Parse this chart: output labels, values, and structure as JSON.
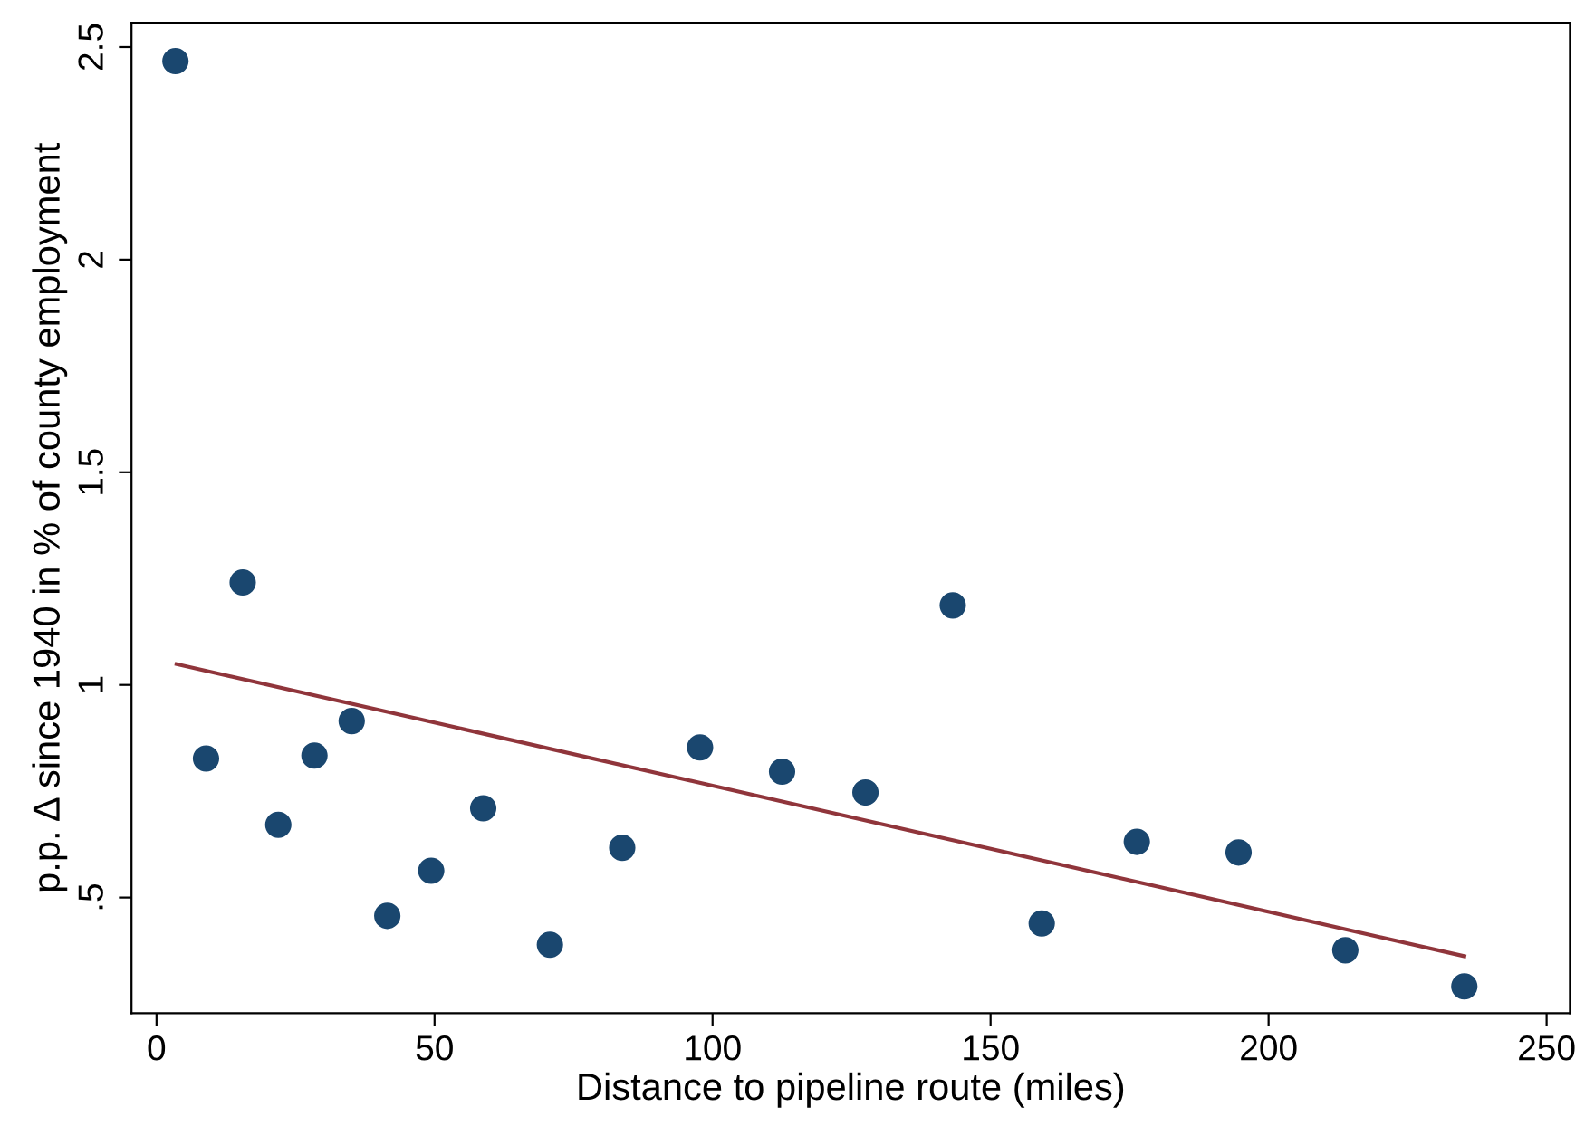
{
  "chart_data": {
    "type": "scatter",
    "xlabel": "Distance to pipeline route (miles)",
    "ylabel": "p.p. Δ since 1940 in % of county employment",
    "xlim": [
      -4.5,
      254.2
    ],
    "ylim": [
      0.228,
      2.557
    ],
    "xticks": [
      0,
      50,
      100,
      150,
      200,
      250
    ],
    "yticks": [
      {
        "value": 0.5,
        "label": ".5"
      },
      1,
      1.5,
      2,
      2.5
    ],
    "grid": false,
    "marker": "circle",
    "series": [
      {
        "color": "#1a476f",
        "x": [
          3.4,
          8.9,
          15.5,
          21.9,
          28.4,
          35.1,
          41.5,
          49.4,
          58.75,
          70.75,
          83.75,
          97.75,
          112.5,
          127.5,
          143.2,
          159.2,
          176.3,
          194.6,
          213.8,
          235.2
        ],
        "values": [
          2.467,
          0.827,
          1.241,
          0.671,
          0.834,
          0.915,
          0.457,
          0.563,
          0.71,
          0.389,
          0.617,
          0.853,
          0.796,
          0.747,
          1.187,
          0.439,
          0.631,
          0.606,
          0.376,
          0.291
        ]
      },
      {
        "type": "line",
        "color": "#90353b",
        "marker": "none",
        "x": [
          3.6,
          235.2
        ],
        "values": [
          1.049,
          0.362
        ]
      }
    ]
  }
}
